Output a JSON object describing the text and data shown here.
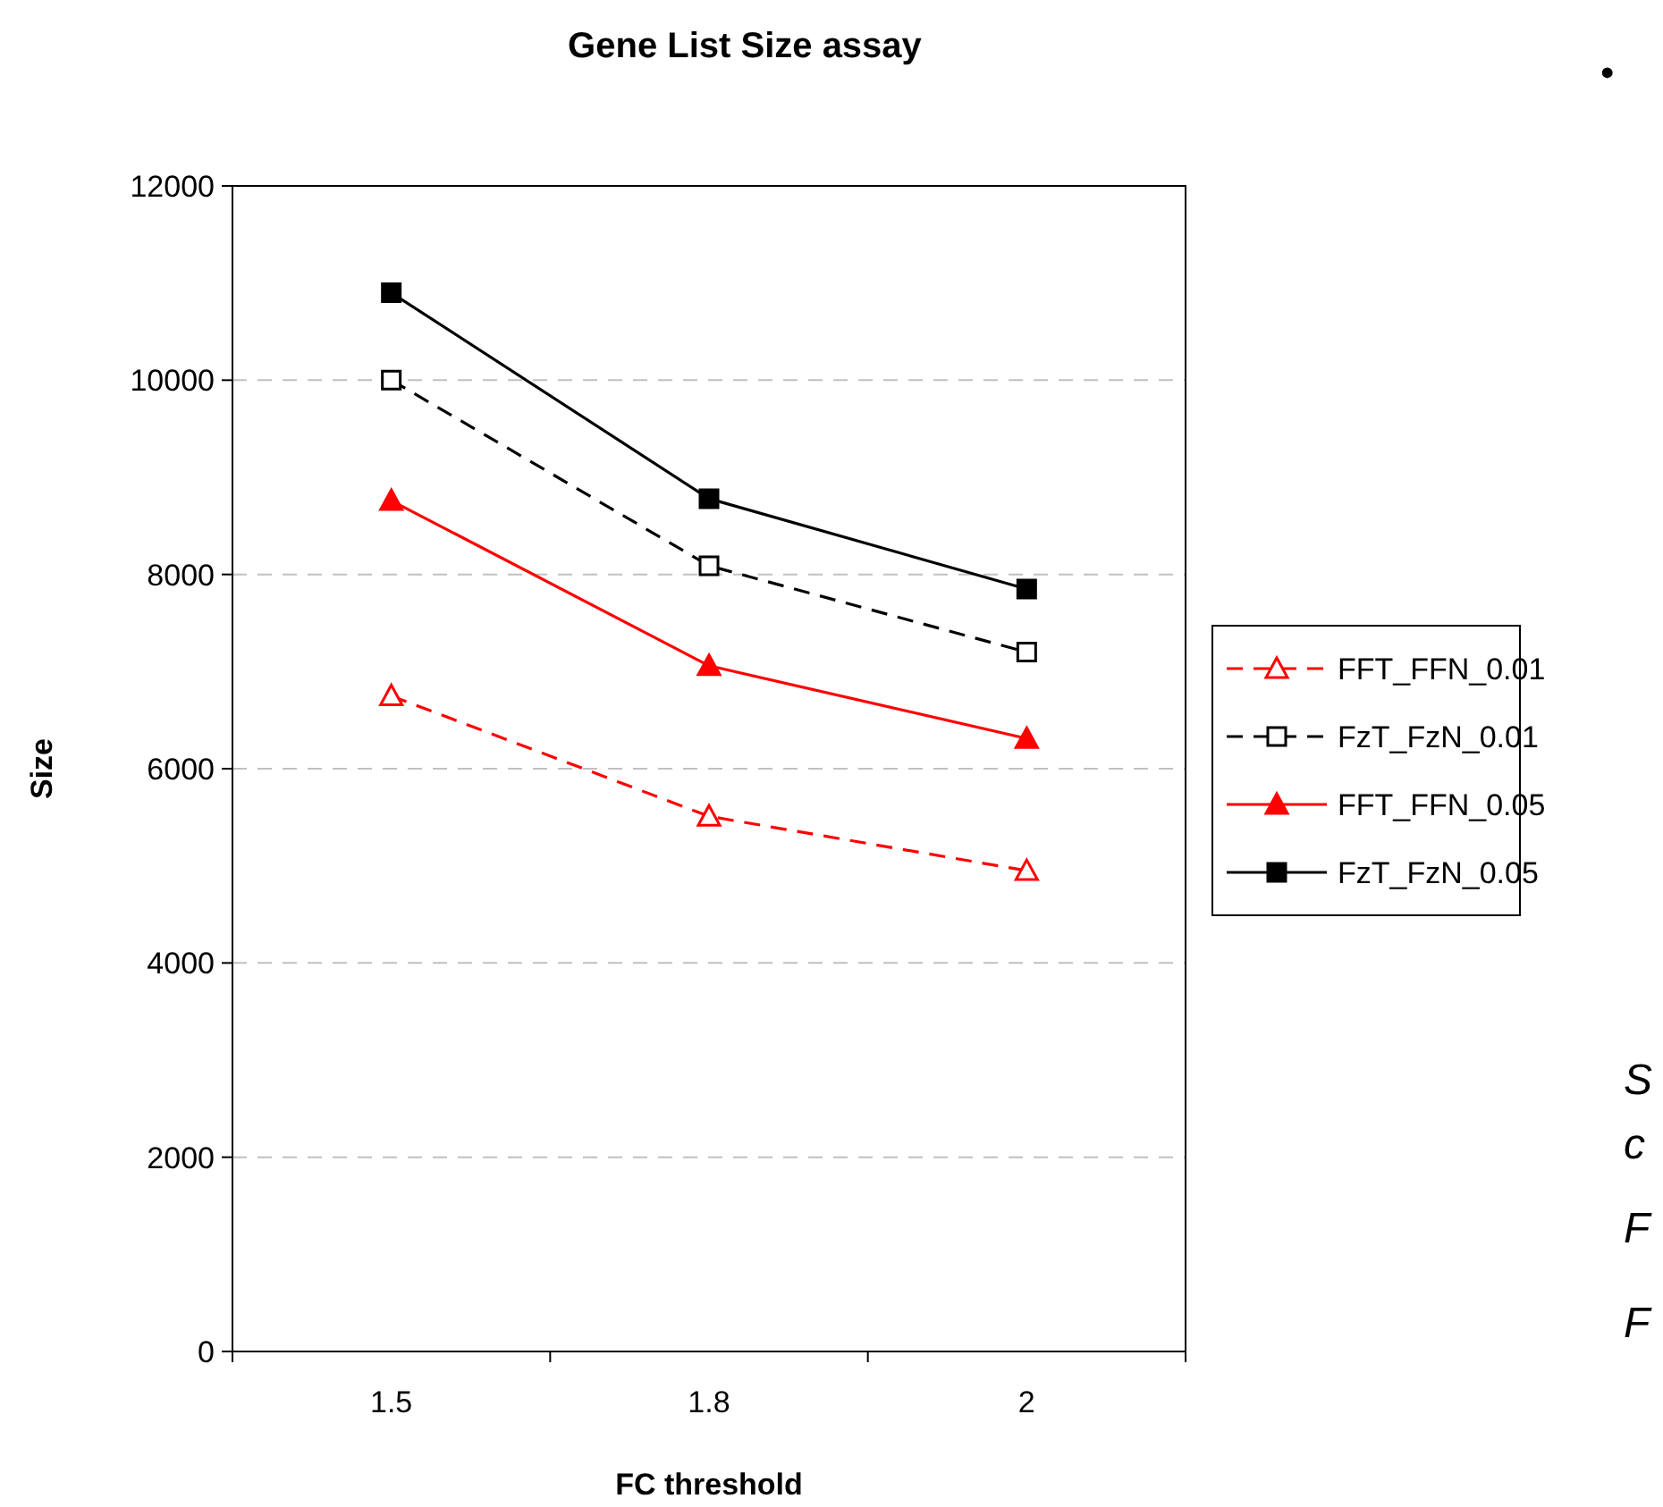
{
  "chart_data": {
    "type": "line",
    "title": "Gene List Size assay",
    "xlabel": "FC threshold",
    "ylabel": "Size",
    "categories": [
      "1.5",
      "1.8",
      "2"
    ],
    "series": [
      {
        "name": "FFT_FFN_0.01",
        "color": "#ff0000",
        "values": [
          6750,
          5510,
          4950
        ],
        "marker": "triangle",
        "line_style": "dashed"
      },
      {
        "name": "FzT_FzN_0.01",
        "color": "#000000",
        "values": [
          10000,
          8090,
          7200
        ],
        "marker": "square",
        "line_style": "dashed"
      },
      {
        "name": "FFT_FFN_0.05",
        "color": "#ff0000",
        "values": [
          8760,
          7060,
          6310
        ],
        "marker": "triangle",
        "line_style": "solid"
      },
      {
        "name": "FzT_FzN_0.05",
        "color": "#000000",
        "values": [
          10900,
          8780,
          7850
        ],
        "marker": "square",
        "line_style": "solid"
      }
    ],
    "ylim": [
      0,
      12000
    ],
    "yticks": [
      0,
      2000,
      4000,
      6000,
      8000,
      10000,
      12000
    ],
    "grid": "y",
    "legend": "right",
    "annotations": [
      "•",
      "S",
      "c",
      "F",
      "F"
    ]
  }
}
